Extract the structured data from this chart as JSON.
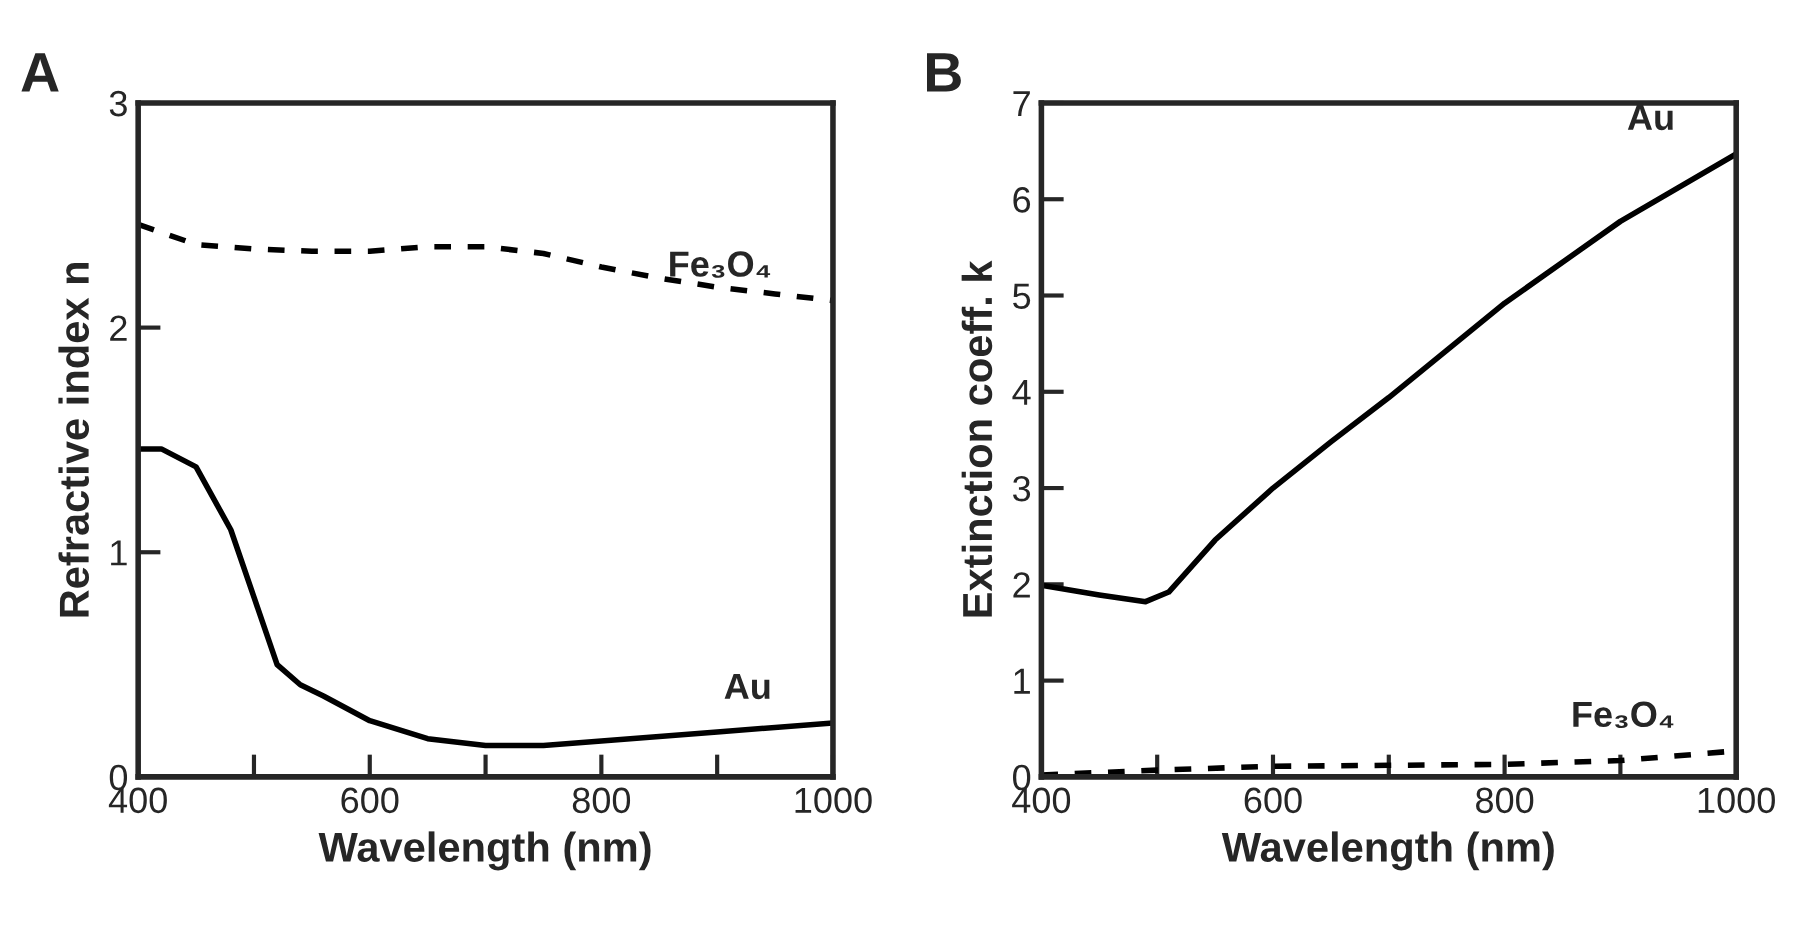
{
  "chart_data": [
    {
      "type": "line",
      "title": "A",
      "xlabel": "Wavelength (nm)",
      "ylabel": "Refractive index n",
      "xlim": [
        400,
        1000
      ],
      "ylim": [
        0,
        3
      ],
      "xticks": [
        400,
        {
          "value": 500,
          "label": null
        },
        600,
        {
          "value": 700,
          "label": null
        },
        800,
        {
          "value": 900,
          "label": null
        },
        1000
      ],
      "yticks": [
        0,
        1,
        2,
        3
      ],
      "grid": false,
      "series": [
        {
          "name": "Fe₃O₄",
          "color": "#000000",
          "line_style": "dashed",
          "x": [
            400,
            450,
            500,
            550,
            600,
            650,
            700,
            750,
            800,
            850,
            900,
            950,
            1000
          ],
          "values": [
            2.46,
            2.37,
            2.35,
            2.34,
            2.34,
            2.36,
            2.36,
            2.33,
            2.27,
            2.22,
            2.18,
            2.15,
            2.12
          ]
        },
        {
          "name": "Au",
          "color": "#000000",
          "line_style": "solid",
          "x": [
            400,
            420,
            450,
            480,
            500,
            520,
            540,
            560,
            600,
            650,
            700,
            750,
            800,
            900,
            1000
          ],
          "values": [
            1.46,
            1.46,
            1.38,
            1.1,
            0.8,
            0.5,
            0.41,
            0.36,
            0.25,
            0.17,
            0.14,
            0.14,
            0.16,
            0.2,
            0.24
          ]
        }
      ]
    },
    {
      "type": "line",
      "title": "B",
      "xlabel": "Wavelength (nm)",
      "ylabel": "Extinction coeff. k",
      "xlim": [
        400,
        1000
      ],
      "ylim": [
        0,
        7
      ],
      "xticks": [
        400,
        {
          "value": 500,
          "label": null
        },
        600,
        {
          "value": 700,
          "label": null
        },
        800,
        {
          "value": 900,
          "label": null
        },
        1000
      ],
      "yticks": [
        0,
        1,
        2,
        3,
        4,
        5,
        6,
        7
      ],
      "grid": false,
      "series": [
        {
          "name": "Au",
          "color": "#000000",
          "line_style": "solid",
          "x": [
            400,
            450,
            490,
            510,
            530,
            550,
            600,
            650,
            700,
            750,
            800,
            900,
            1000
          ],
          "values": [
            1.99,
            1.89,
            1.82,
            1.92,
            2.19,
            2.46,
            3.0,
            3.48,
            3.94,
            4.43,
            4.92,
            5.77,
            6.47
          ]
        },
        {
          "name": "Fe₃O₄",
          "color": "#000000",
          "line_style": "dashed",
          "x": [
            400,
            500,
            600,
            700,
            800,
            900,
            1000
          ],
          "values": [
            0.02,
            0.07,
            0.11,
            0.12,
            0.13,
            0.17,
            0.27
          ]
        }
      ]
    }
  ]
}
